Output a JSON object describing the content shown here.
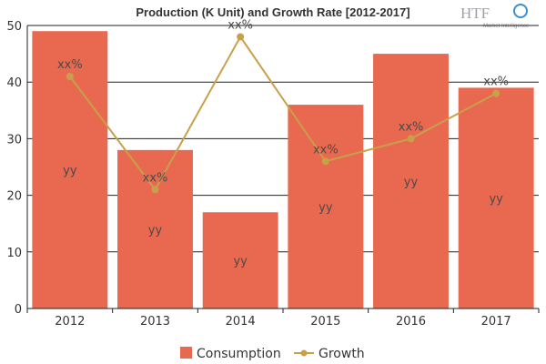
{
  "chart_data": {
    "type": "bar",
    "title": "Production (K Unit) and Growth Rate [2012-2017]",
    "categories": [
      "2012",
      "2013",
      "2014",
      "2015",
      "2016",
      "2017"
    ],
    "series": [
      {
        "name": "Consumption",
        "kind": "bar",
        "color": "#e8694f",
        "values": [
          49,
          28,
          17,
          36,
          45,
          39
        ],
        "labels": [
          "yy",
          "yy",
          "yy",
          "yy",
          "yy",
          "yy"
        ]
      },
      {
        "name": "Growth",
        "kind": "line",
        "color": "#c8a04a",
        "values": [
          41,
          21,
          48,
          26,
          30,
          38
        ],
        "labels": [
          "xx%",
          "xx%",
          "xx%",
          "xx%",
          "xx%",
          "xx%"
        ]
      }
    ],
    "ylim": [
      0,
      50
    ],
    "yticks": [
      0,
      10,
      20,
      30,
      40,
      50
    ],
    "grid": true,
    "legend": "bottom"
  },
  "logo": {
    "text": "HTF",
    "subtitle": "Market Intelligence"
  }
}
